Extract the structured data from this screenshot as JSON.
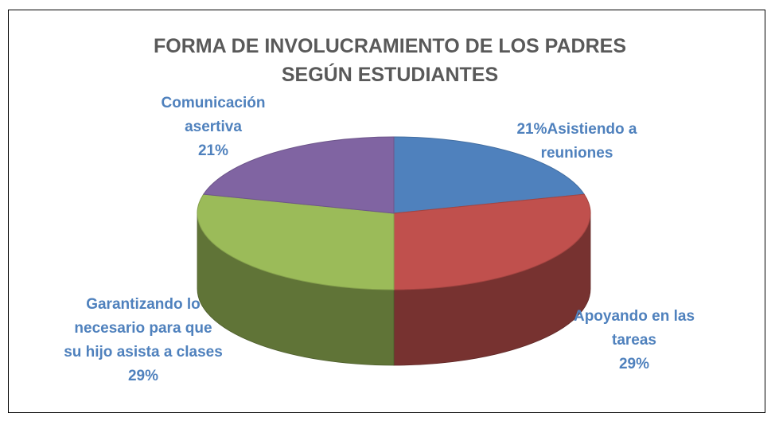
{
  "chart_data": {
    "type": "pie",
    "title": "FORMA DE INVOLUCRAMIENTO DE LOS PADRES SEGÚN ESTUDIANTES",
    "categories": [
      "Asistiendo a reuniones",
      "Apoyando en las tareas",
      "Garantizando lo necesario para que su hijo asista a clases",
      "Comunicación asertiva"
    ],
    "values": [
      21,
      29,
      29,
      21
    ],
    "value_labels": [
      "21%",
      "29%",
      "29%",
      "21%"
    ],
    "colors": [
      "#4f81bd",
      "#c0504d",
      "#9bbb59",
      "#8064a2"
    ]
  }
}
